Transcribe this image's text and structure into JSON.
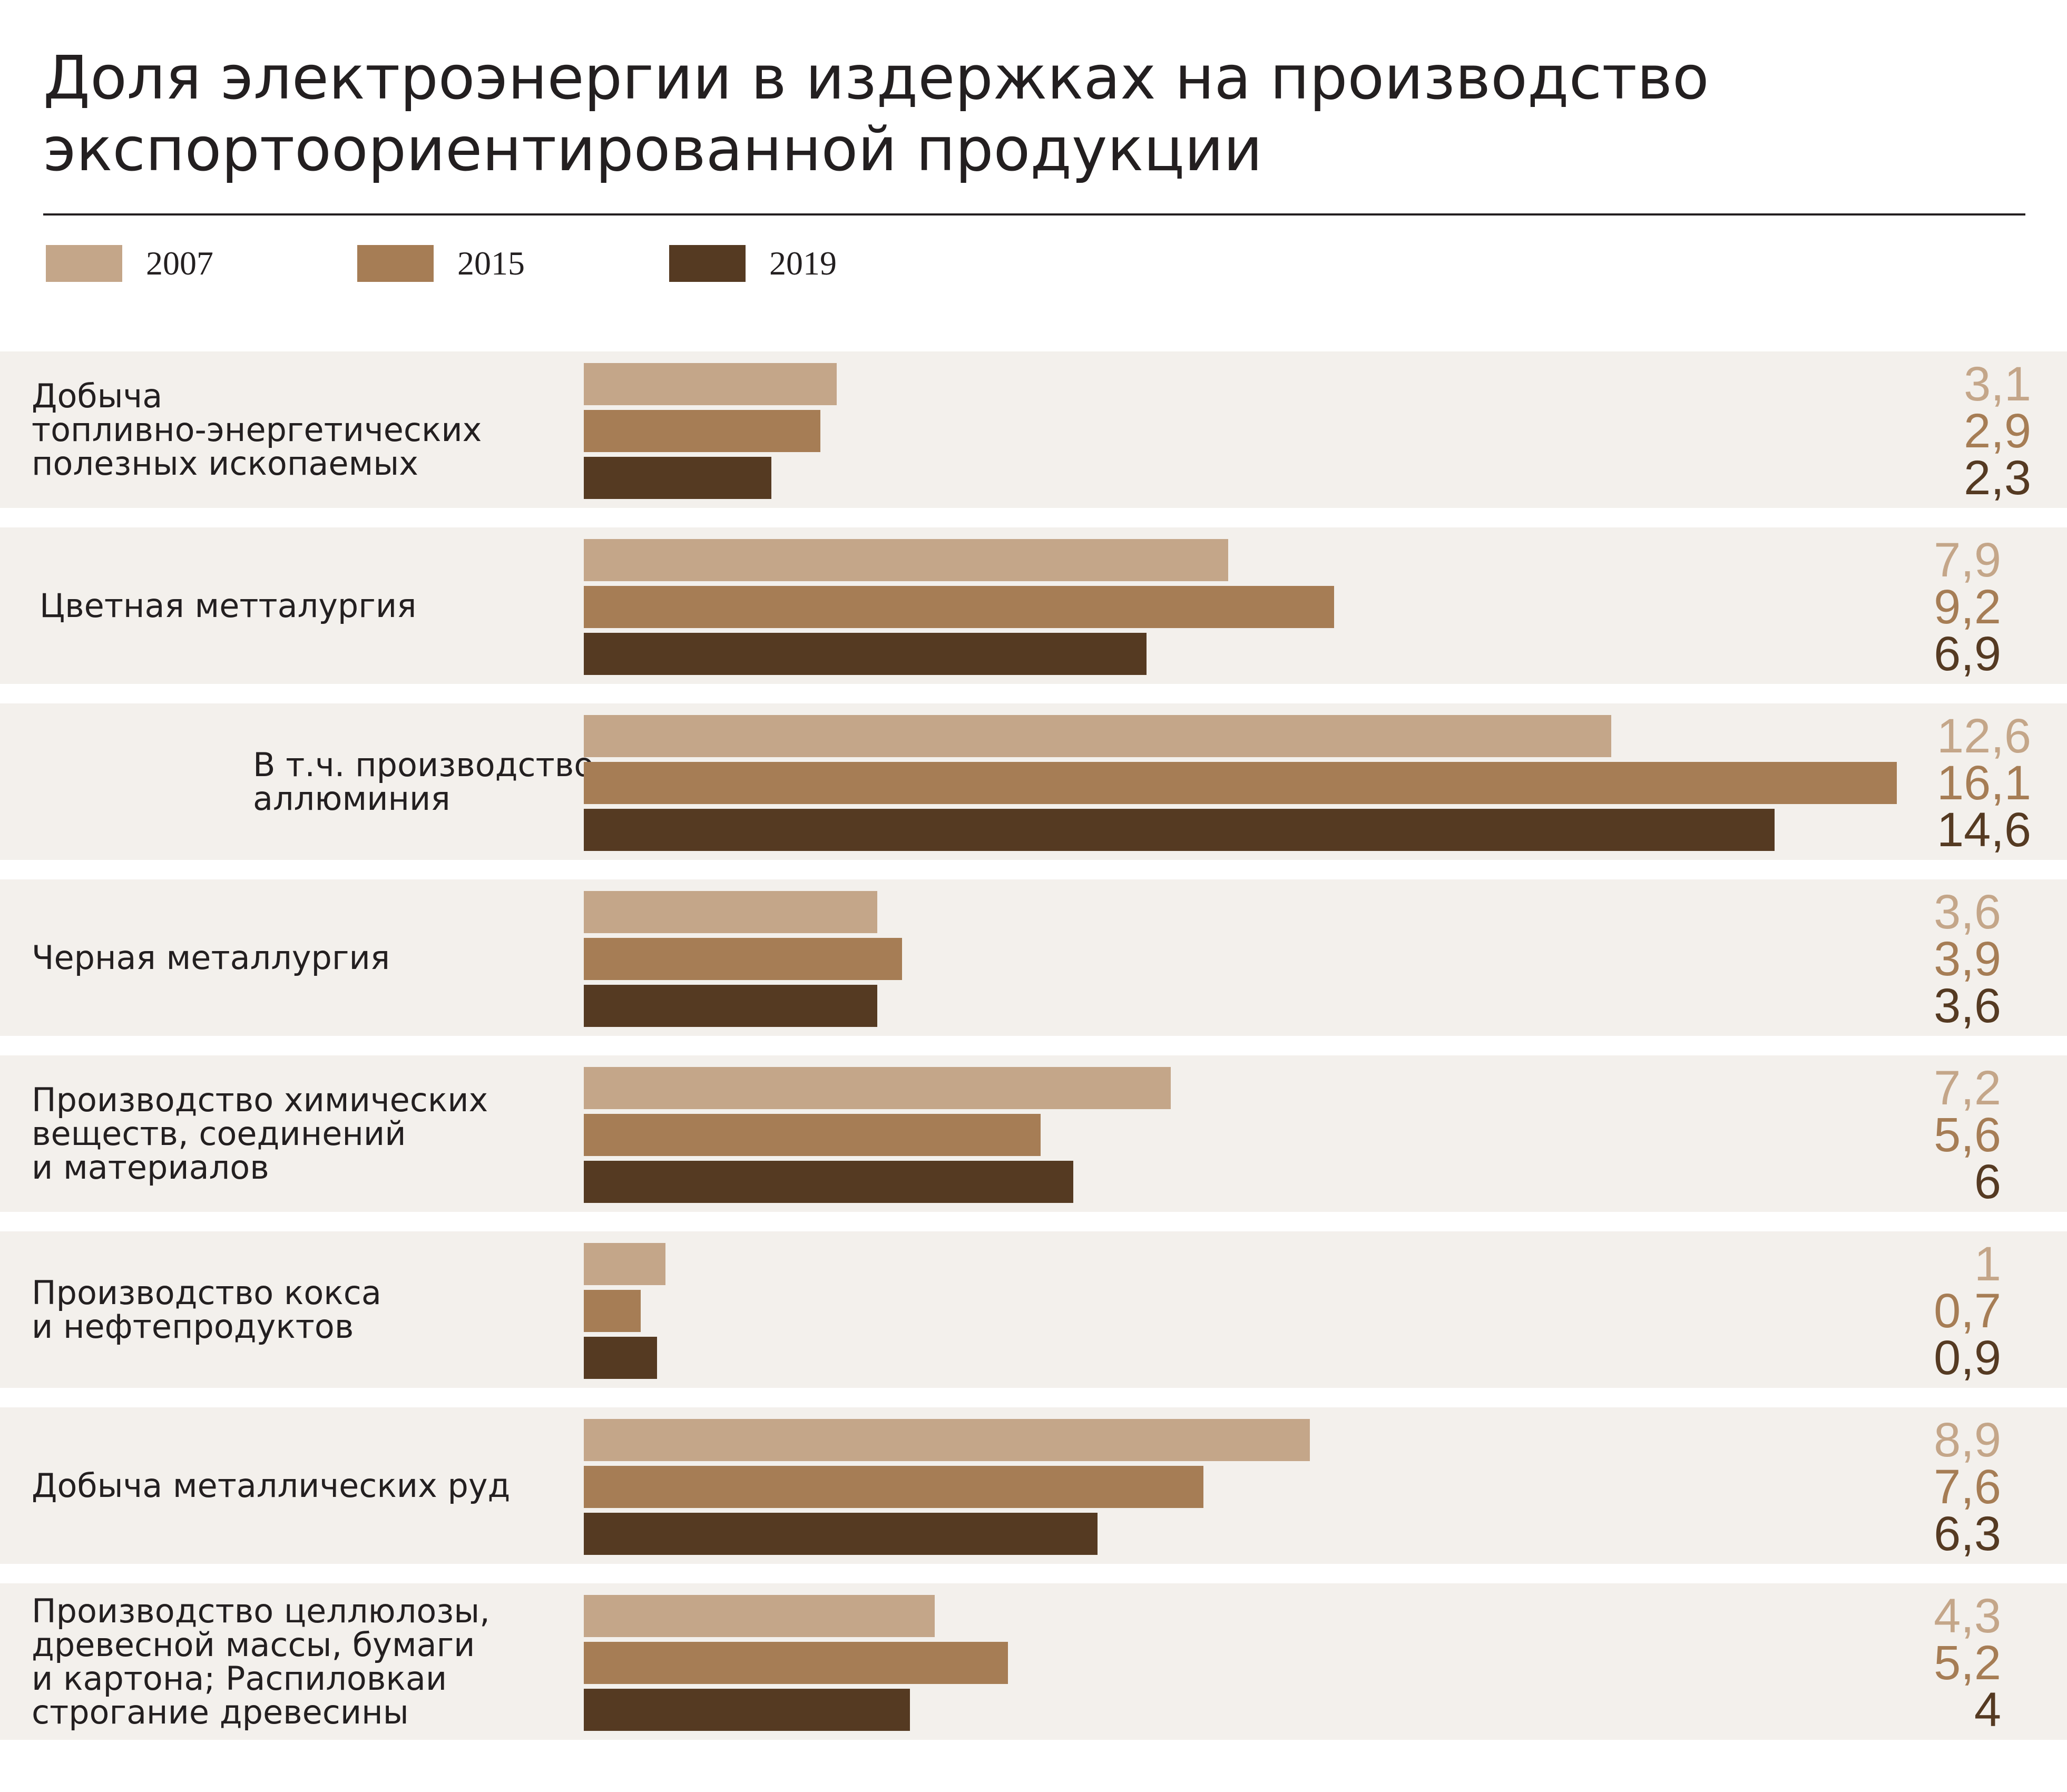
{
  "title_lines": [
    "Доля электроэнергии в издержках на производство",
    "экспортоориентированной продукции"
  ],
  "colors": {
    "2007": "#c4a689",
    "2015": "#a67d55",
    "2019": "#553a22",
    "panel": "#f3f0ec"
  },
  "chart_data": {
    "type": "bar",
    "orientation": "horizontal",
    "categories": [
      "Добыча топливно-энергетических полезных ископаемых",
      "Цветная метталургия",
      "В т.ч. производство аллюминия",
      "Черная металлургия",
      "Производство химических веществ, соединений и материалов",
      "Производство кокса и нефтепродуктов",
      "Добыча металлических руд",
      "Производство целлюлозы, древесной массы, бумаги и картона; Распиловкаи строгание древесины"
    ],
    "category_lines": [
      [
        "Добыча",
        "топливно-энергетических",
        "полезных ископаемых"
      ],
      [
        "Цветная метталургия"
      ],
      [
        "В т.ч. производство",
        "аллюминия"
      ],
      [
        "Черная металлургия"
      ],
      [
        "Производство химических",
        "веществ, соединений",
        "и материалов"
      ],
      [
        "Производство кокса",
        "и нефтепродуктов"
      ],
      [
        "Добыча металлических руд"
      ],
      [
        "Производство целлюлозы,",
        "древесной массы, бумаги",
        "и картона; Распиловкаи",
        "строгание древесины"
      ]
    ],
    "series": [
      {
        "name": "2007",
        "values": [
          3.1,
          7.9,
          12.6,
          3.6,
          7.2,
          1,
          8.9,
          4.3
        ],
        "labels": [
          "3,1",
          "7,9",
          "12,6",
          "3,6",
          "7,2",
          "1",
          "8,9",
          "4,3"
        ]
      },
      {
        "name": "2015",
        "values": [
          2.9,
          9.2,
          16.1,
          3.9,
          5.6,
          0.7,
          7.6,
          5.2
        ],
        "labels": [
          "2,9",
          "9,2",
          "16,1",
          "3,9",
          "5,6",
          "0,7",
          "7,6",
          "5,2"
        ]
      },
      {
        "name": "2019",
        "values": [
          2.3,
          6.9,
          14.6,
          3.6,
          6,
          0.9,
          6.3,
          4
        ],
        "labels": [
          "2,3",
          "6,9",
          "14,6",
          "3,6",
          "6",
          "0,9",
          "6,3",
          "4"
        ]
      }
    ],
    "xlim": [
      0,
      16.1
    ],
    "grid": false,
    "legend_position": "top-left"
  }
}
